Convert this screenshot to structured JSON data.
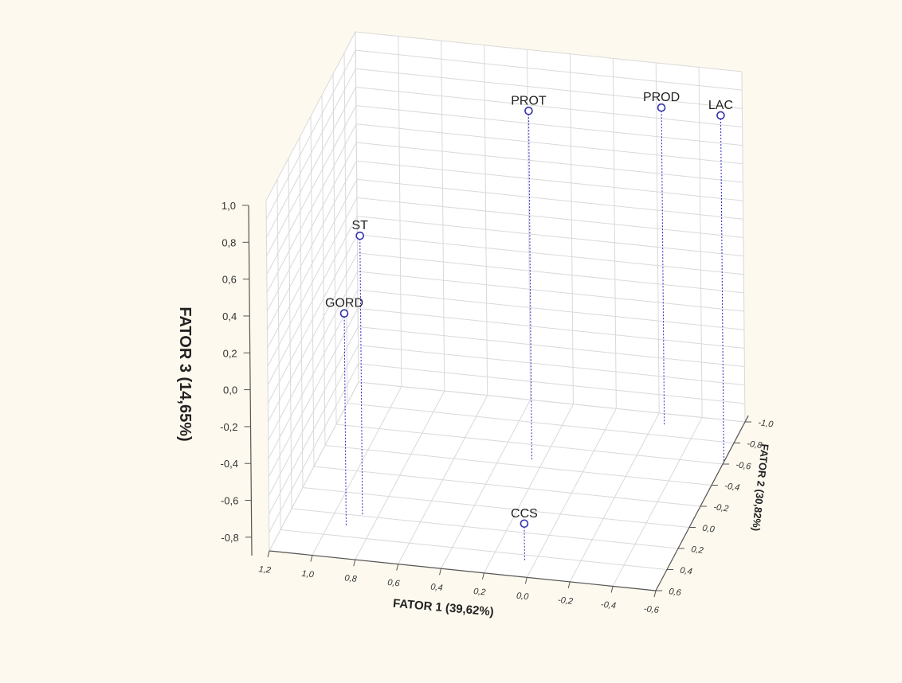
{
  "chart_data": {
    "type": "scatter3d",
    "title": "",
    "xlabel": "FATOR 1 (39,62%)",
    "ylabel": "FATOR 2 (30,82%)",
    "zlabel": "FATOR 3 (14,65%)",
    "x_ticks": [
      "1,2",
      "1,0",
      "0,8",
      "0,6",
      "0,4",
      "0,2",
      "0,0",
      "-0,2",
      "-0,4",
      "-0,6"
    ],
    "y_ticks": [
      "-1,0",
      "-0,8",
      "-0,6",
      "-0,4",
      "-0,2",
      "0,0",
      "0,2",
      "0,4",
      "0,6"
    ],
    "z_ticks": [
      "1,0",
      "0,8",
      "0,6",
      "0,4",
      "0,2",
      "0,0",
      "-0,2",
      "-0,4",
      "-0,6",
      "-0,8"
    ],
    "xlim": [
      1.2,
      -0.6
    ],
    "ylim": [
      -1.0,
      0.6
    ],
    "zlim": [
      -0.9,
      1.0
    ],
    "grid": true,
    "colors": {
      "point": "#3333aa",
      "drop_line": "#2a2acc",
      "grid": "#d9d9d9",
      "background": "#ffffff",
      "page": "#fdf9ee"
    },
    "points": [
      {
        "label": "GORD",
        "x": 0.92,
        "y": 0.3,
        "z": 0.25
      },
      {
        "label": "ST",
        "x": 0.87,
        "y": 0.2,
        "z": 0.62
      },
      {
        "label": "PROT",
        "x": 0.25,
        "y": -0.45,
        "z": 1.0
      },
      {
        "label": "PROD",
        "x": -0.25,
        "y": -0.9,
        "z": 0.82
      },
      {
        "label": "LAC",
        "x": -0.6,
        "y": -0.62,
        "z": 0.98
      },
      {
        "label": "CCS",
        "x": 0.05,
        "y": 0.45,
        "z": -0.7
      }
    ]
  }
}
